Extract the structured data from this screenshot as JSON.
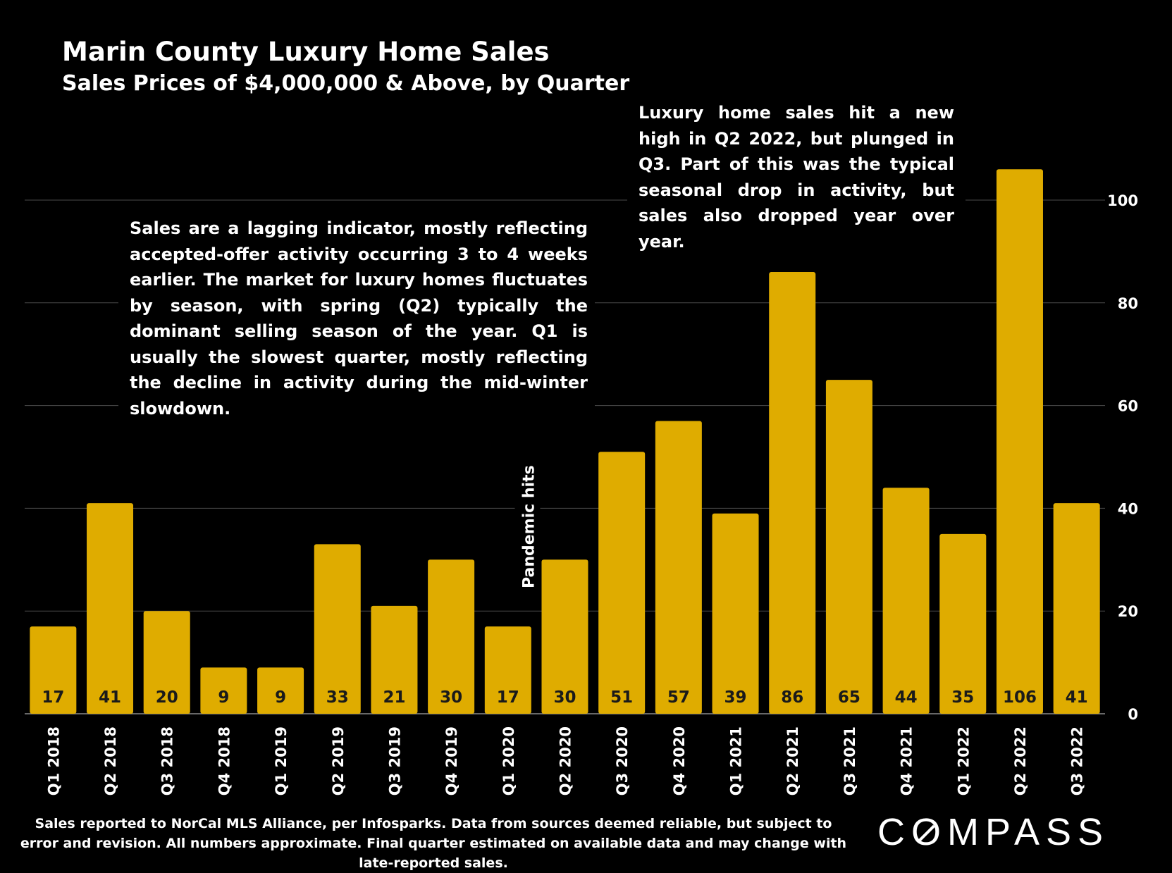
{
  "title": "Marin County Luxury Home Sales",
  "subtitle": "Sales Prices of $4,000,000 & Above, by Quarter",
  "notes": {
    "left": "Sales are a lagging indicator, mostly reflecting accepted-offer activity occurring 3 to 4 weeks earlier. The market for luxury homes fluctuates by season, with spring (Q2) typically the dominant selling season of the year. Q1 is usually the slowest quarter, mostly reflecting the decline in activity during the mid-winter slowdown.",
    "right": "Luxury home sales hit a new high in Q2 2022, but plunged in Q3. Part of this was the typical seasonal drop in activity, but sales also dropped year over year."
  },
  "footer": "Sales reported to NorCal MLS Alliance, per Infosparks. Data from sources deemed reliable, but subject to error and revision. All numbers approximate. Final quarter estimated on available data and may change with late-reported sales.",
  "logo": "COMPASS",
  "colors": {
    "bar": "#DFAC00",
    "background": "#000000",
    "text": "#FFFFFF",
    "grid": "#4a4a4a"
  },
  "chart_data": {
    "type": "bar",
    "title": "Marin County Luxury Home Sales",
    "subtitle": "Sales Prices of $4,000,000 & Above, by Quarter",
    "categories": [
      "Q1 2018",
      "Q2 2018",
      "Q3 2018",
      "Q4 2018",
      "Q1 2019",
      "Q2 2019",
      "Q3 2019",
      "Q4 2019",
      "Q1 2020",
      "Q2 2020",
      "Q3 2020",
      "Q4 2020",
      "Q1 2021",
      "Q2 2021",
      "Q3 2021",
      "Q4 2021",
      "Q1 2022",
      "Q2 2022",
      "Q3 2022"
    ],
    "values": [
      17,
      41,
      20,
      9,
      9,
      33,
      21,
      30,
      17,
      30,
      51,
      57,
      39,
      86,
      65,
      44,
      35,
      106,
      41
    ],
    "ylim": [
      0,
      110
    ],
    "yticks": [
      0,
      20,
      40,
      60,
      80,
      100
    ],
    "y_axis_side": "right",
    "grid": true,
    "data_labels": true,
    "annotations": [
      {
        "category": "Q2 2020",
        "text": "Pandemic hits"
      }
    ]
  }
}
